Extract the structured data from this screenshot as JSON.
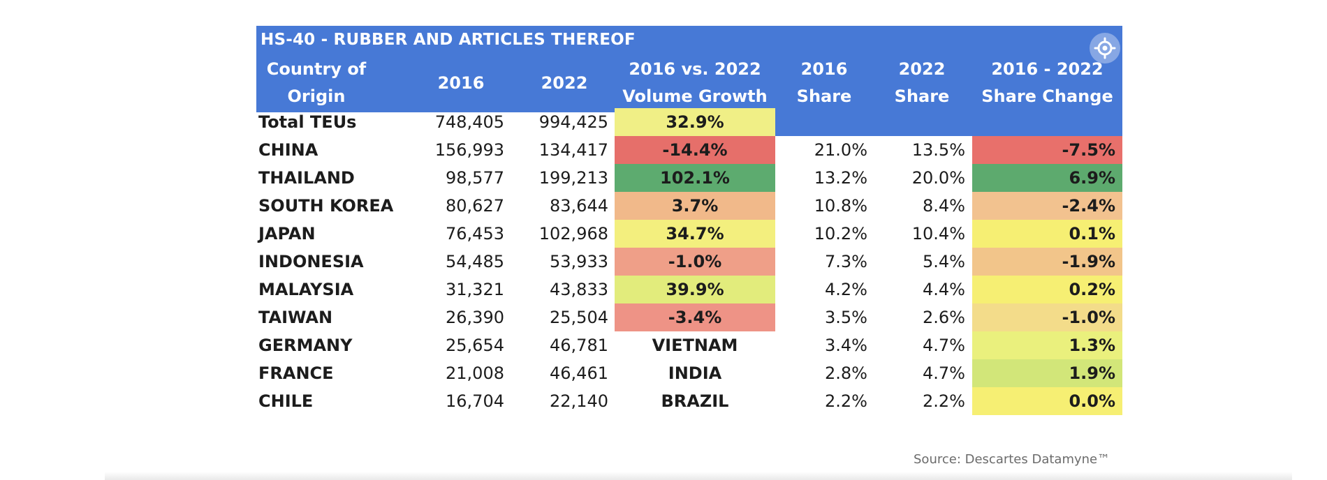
{
  "table": {
    "title": "HS-40 - RUBBER AND ARTICLES THEREOF",
    "headers": {
      "country": [
        "Country of",
        "Origin"
      ],
      "y2016": "2016",
      "y2022": "2022",
      "growth": [
        "2016 vs. 2022",
        "Volume Growth"
      ],
      "share2016": [
        "2016",
        "Share"
      ],
      "share2022": [
        "2022",
        "Share"
      ],
      "share_change": [
        "2016 - 2022",
        "Share Change"
      ]
    },
    "rows": [
      {
        "country": "Total TEUs",
        "v2016": "748,405",
        "v2022": "994,425",
        "growth": "32.9%",
        "share2016": "",
        "share2022": "",
        "change": ""
      },
      {
        "country": "CHINA",
        "v2016": "156,993",
        "v2022": "134,417",
        "growth": "-14.4%",
        "share2016": "21.0%",
        "share2022": "13.5%",
        "change": "-7.5%"
      },
      {
        "country": "THAILAND",
        "v2016": "98,577",
        "v2022": "199,213",
        "growth": "102.1%",
        "share2016": "13.2%",
        "share2022": "20.0%",
        "change": "6.9%"
      },
      {
        "country": "SOUTH KOREA",
        "v2016": "80,627",
        "v2022": "83,644",
        "growth": "3.7%",
        "share2016": "10.8%",
        "share2022": "8.4%",
        "change": "-2.4%"
      },
      {
        "country": "JAPAN",
        "v2016": "76,453",
        "v2022": "102,968",
        "growth": "34.7%",
        "share2016": "10.2%",
        "share2022": "10.4%",
        "change": "0.1%"
      },
      {
        "country": "INDONESIA",
        "v2016": "54,485",
        "v2022": "53,933",
        "growth": "-1.0%",
        "share2016": "7.3%",
        "share2022": "5.4%",
        "change": "-1.9%"
      },
      {
        "country": "MALAYSIA",
        "v2016": "31,321",
        "v2022": "43,833",
        "growth": "39.9%",
        "share2016": "4.2%",
        "share2022": "4.4%",
        "change": "0.2%"
      },
      {
        "country": "TAIWAN",
        "v2016": "26,390",
        "v2022": "25,504",
        "growth": "-3.4%",
        "share2016": "3.5%",
        "share2022": "2.6%",
        "change": "-1.0%"
      },
      {
        "country": "GERMANY",
        "v2016": "25,654",
        "v2022": "46,781",
        "growth": "VIETNAM",
        "share2016": "3.4%",
        "share2022": "4.7%",
        "change": "1.3%"
      },
      {
        "country": "FRANCE",
        "v2016": "21,008",
        "v2022": "46,461",
        "growth": "INDIA",
        "share2016": "2.8%",
        "share2022": "4.7%",
        "change": "1.9%"
      },
      {
        "country": "CHILE",
        "v2016": "16,704",
        "v2022": "22,140",
        "growth": "BRAZIL",
        "share2016": "2.2%",
        "share2022": "2.2%",
        "change": "0.0%"
      }
    ],
    "growth_colors": [
      "#f0ef86",
      "#e66f6a",
      "#5dab6f",
      "#f1b98a",
      "#f3ef7e",
      "#ef9f88",
      "#e2ec7c",
      "#ee9386",
      "",
      "",
      ""
    ],
    "change_colors": [
      "",
      "#e8706b",
      "#5daa6e",
      "#f2c28f",
      "#f6ef73",
      "#f2c58a",
      "#f6ef73",
      "#f3dc8a",
      "#eaf07d",
      "#d2e679",
      "#f6ef73"
    ]
  },
  "source": "Source: Descartes Datamyne™",
  "colors": {
    "header_bg": "#4779d6",
    "header_text": "#ffffff"
  }
}
